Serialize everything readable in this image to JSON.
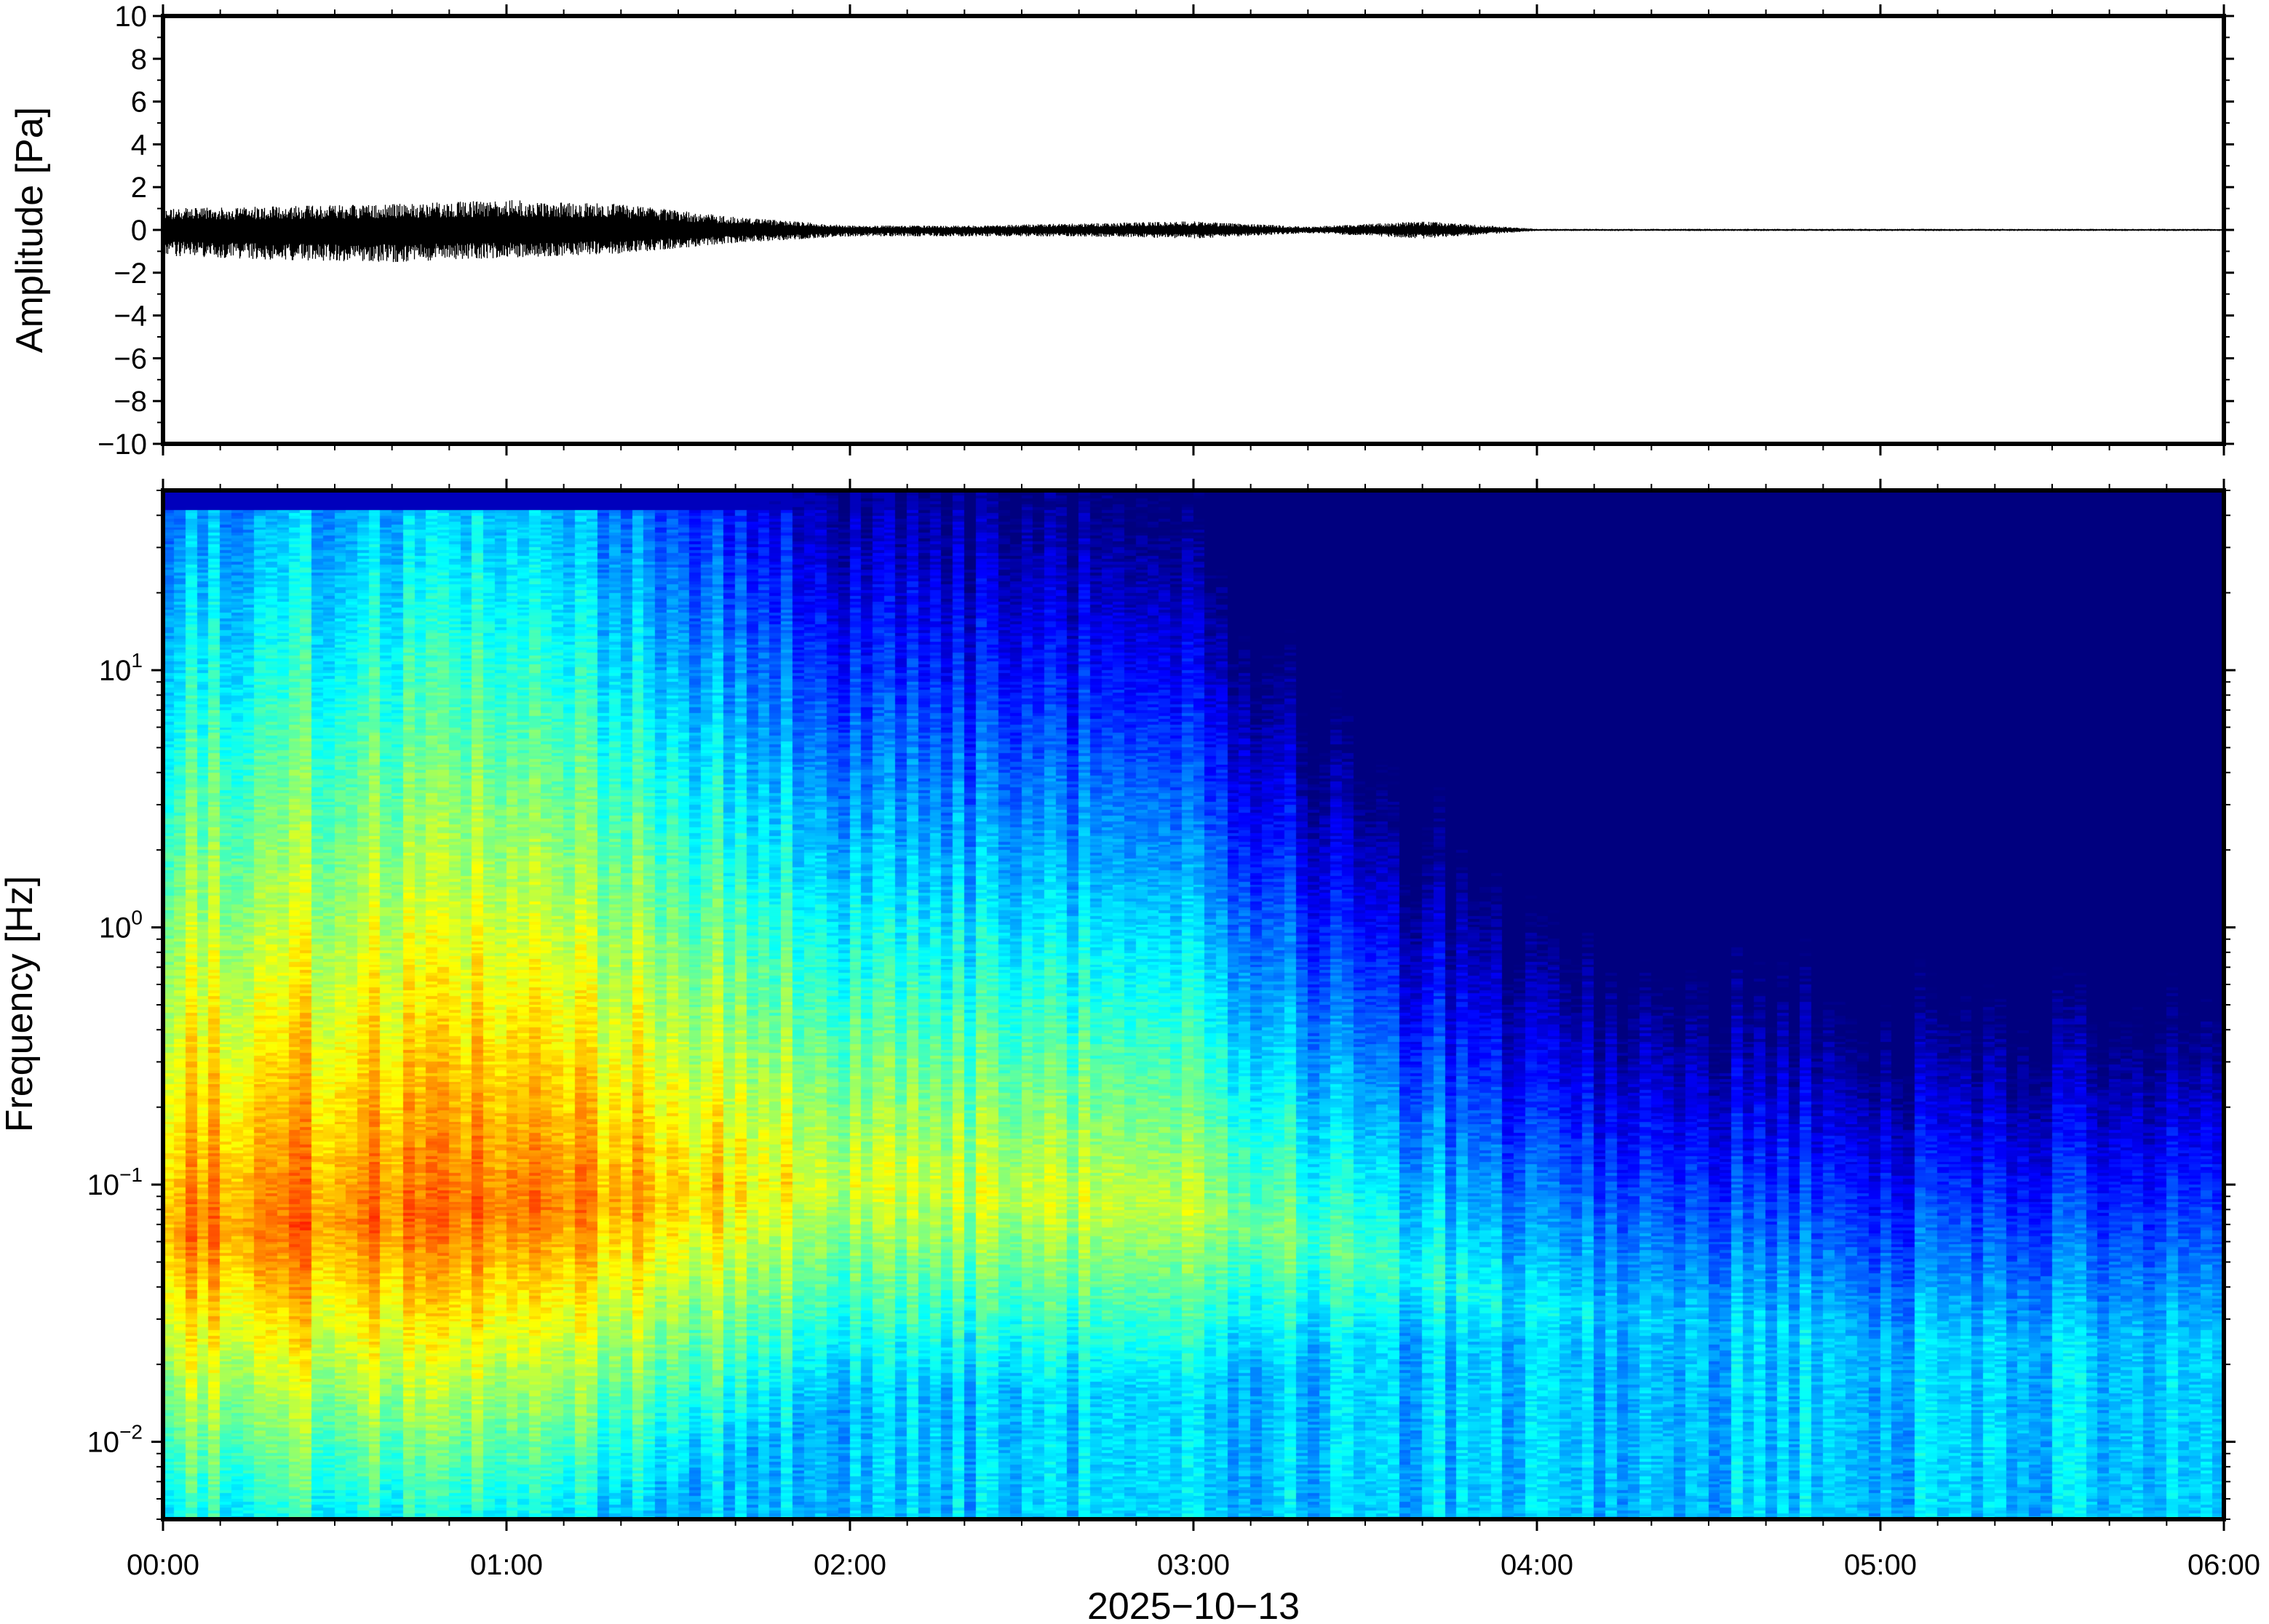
{
  "chart_data": [
    {
      "type": "line",
      "panel": "waveform",
      "title": "",
      "xlabel": "",
      "ylabel": "Amplitude [Pa]",
      "xlim": [
        "00:00",
        "06:00"
      ],
      "ylim": [
        -10,
        10
      ],
      "y_ticks": [
        10,
        8,
        6,
        4,
        2,
        0,
        -2,
        -4,
        -6,
        -8,
        -10
      ],
      "y_tick_labels": [
        "10",
        "8",
        "6",
        "4",
        "2",
        "0",
        "−2",
        "−4",
        "−6",
        "−8",
        "−10"
      ],
      "line_color": "#000000",
      "envelope_segments": [
        {
          "t": "00:00",
          "max": 1.0,
          "min": -1.2
        },
        {
          "t": "00:20",
          "max": 1.1,
          "min": -1.4
        },
        {
          "t": "00:40",
          "max": 1.2,
          "min": -1.5
        },
        {
          "t": "01:00",
          "max": 1.4,
          "min": -1.3
        },
        {
          "t": "01:20",
          "max": 1.2,
          "min": -1.1
        },
        {
          "t": "01:40",
          "max": 0.6,
          "min": -0.6
        },
        {
          "t": "02:00",
          "max": 0.2,
          "min": -0.3
        },
        {
          "t": "02:20",
          "max": 0.2,
          "min": -0.3
        },
        {
          "t": "02:40",
          "max": 0.3,
          "min": -0.3
        },
        {
          "t": "03:00",
          "max": 0.4,
          "min": -0.4
        },
        {
          "t": "03:20",
          "max": 0.15,
          "min": -0.15
        },
        {
          "t": "03:40",
          "max": 0.4,
          "min": -0.4
        },
        {
          "t": "04:00",
          "max": 0.05,
          "min": -0.05
        },
        {
          "t": "05:00",
          "max": 0.05,
          "min": -0.05
        },
        {
          "t": "06:00",
          "max": 0.05,
          "min": -0.05
        }
      ]
    },
    {
      "type": "heatmap",
      "panel": "spectrogram",
      "title": "",
      "xlabel": "2025−10−13",
      "ylabel": "Frequency [Hz]",
      "xlim": [
        "00:00",
        "06:00"
      ],
      "ylim_hz": [
        0.005,
        50
      ],
      "y_scale": "log",
      "y_tick_values": [
        0.01,
        0.1,
        1,
        10
      ],
      "y_tick_labels": [
        {
          "base": "10",
          "exp": "−2"
        },
        {
          "base": "10",
          "exp": "−1"
        },
        {
          "base": "10",
          "exp": "0"
        },
        {
          "base": "10",
          "exp": "1"
        }
      ],
      "x_tick_labels": [
        "00:00",
        "01:00",
        "02:00",
        "03:00",
        "04:00",
        "05:00",
        "06:00"
      ],
      "colormap": "jet",
      "relative_power_profile": [
        {
          "t": "00:00",
          "peak_log10_hz": -1.2,
          "level": 0.95
        },
        {
          "t": "01:00",
          "peak_log10_hz": -1.1,
          "level": 1.0
        },
        {
          "t": "02:00",
          "peak_log10_hz": -1.0,
          "level": 0.75
        },
        {
          "t": "03:00",
          "peak_log10_hz": -1.1,
          "level": 0.7
        },
        {
          "t": "03:30",
          "peak_log10_hz": -1.3,
          "level": 0.55
        },
        {
          "t": "04:00",
          "peak_log10_hz": -1.5,
          "level": 0.45
        },
        {
          "t": "05:00",
          "peak_log10_hz": -1.6,
          "level": 0.4
        },
        {
          "t": "06:00",
          "peak_log10_hz": -1.6,
          "level": 0.4
        }
      ]
    }
  ]
}
